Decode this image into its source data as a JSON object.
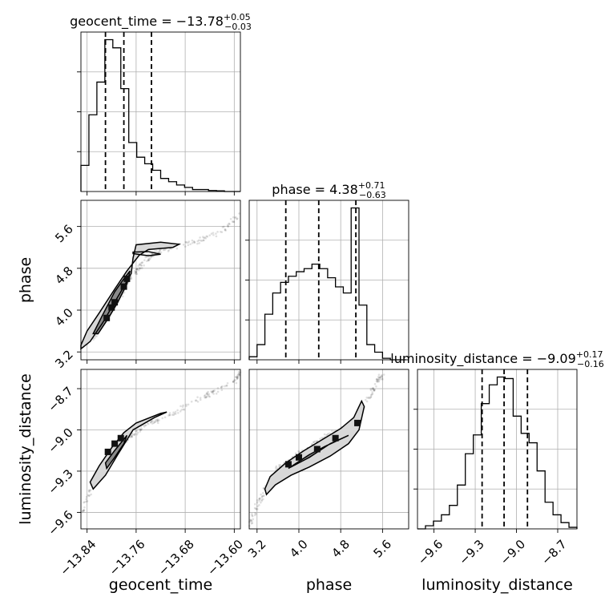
{
  "chart_data": {
    "type": "corner",
    "parameters": [
      {
        "name": "geocent_time",
        "label": "geocent_time",
        "title_prefix": "geocent_time = ",
        "median": "−13.78",
        "plus": "+0.05",
        "minus": "−0.03",
        "range": [
          -13.85,
          -13.59
        ],
        "ticks": [
          -13.84,
          -13.76,
          -13.68,
          -13.6
        ],
        "tick_labels": [
          "−13.84",
          "−13.76",
          "−13.68",
          "−13.60"
        ],
        "quantiles": [
          -13.81,
          -13.78,
          -13.735
        ],
        "hist": {
          "edges": [
            -13.85,
            -13.837,
            -13.824,
            -13.811,
            -13.798,
            -13.785,
            -13.772,
            -13.759,
            -13.746,
            -13.733,
            -13.72,
            -13.707,
            -13.694,
            -13.681,
            -13.668,
            -13.655,
            -13.642,
            -13.629,
            -13.616,
            -13.603,
            -13.59
          ],
          "counts": [
            0.16,
            0.47,
            0.67,
            0.93,
            0.88,
            0.63,
            0.3,
            0.21,
            0.17,
            0.13,
            0.08,
            0.06,
            0.04,
            0.025,
            0.012,
            0.012,
            0.006,
            0.004,
            0.0,
            0.0
          ]
        }
      },
      {
        "name": "phase",
        "label": "phase",
        "title_prefix": "phase = ",
        "median": "4.38",
        "plus": "+0.71",
        "minus": "−0.63",
        "range": [
          3.05,
          6.1
        ],
        "ticks": [
          3.2,
          4.0,
          4.8,
          5.6
        ],
        "tick_labels": [
          "3.2",
          "4.0",
          "4.8",
          "5.6"
        ],
        "quantiles": [
          3.75,
          4.38,
          5.09
        ],
        "hist": {
          "edges": [
            3.05,
            3.2,
            3.35,
            3.5,
            3.65,
            3.8,
            3.95,
            4.1,
            4.25,
            4.4,
            4.55,
            4.7,
            4.85,
            5.0,
            5.15,
            5.3,
            5.45,
            5.6,
            5.75,
            5.9,
            6.05
          ],
          "counts": [
            0.02,
            0.1,
            0.3,
            0.44,
            0.51,
            0.55,
            0.58,
            0.6,
            0.63,
            0.6,
            0.54,
            0.48,
            0.44,
            1.0,
            0.36,
            0.1,
            0.05,
            0.01,
            0.0,
            0.0
          ]
        }
      },
      {
        "name": "luminosity_distance",
        "label": "luminosity_distance",
        "title_prefix": "luminosity_distance = ",
        "median": "−9.09",
        "plus": "+0.17",
        "minus": "−0.16",
        "range": [
          -9.72,
          -8.56
        ],
        "ticks": [
          -9.6,
          -9.3,
          -9.0,
          -8.7
        ],
        "tick_labels": [
          "−9.6",
          "−9.3",
          "−9.0",
          "−8.7"
        ],
        "quantiles": [
          -9.25,
          -9.09,
          -8.92
        ],
        "hist": {
          "edges": [
            -9.72,
            -9.662,
            -9.604,
            -9.546,
            -9.488,
            -9.43,
            -9.372,
            -9.314,
            -9.256,
            -9.198,
            -9.14,
            -9.082,
            -9.024,
            -8.966,
            -8.908,
            -8.85,
            -8.792,
            -8.734,
            -8.676,
            -8.618,
            -8.56
          ],
          "counts": [
            0.0,
            0.02,
            0.05,
            0.09,
            0.15,
            0.28,
            0.48,
            0.6,
            0.8,
            0.92,
            0.97,
            0.96,
            0.72,
            0.61,
            0.55,
            0.37,
            0.17,
            0.09,
            0.04,
            0.01
          ]
        }
      }
    ],
    "pairs": [
      {
        "x": "geocent_time",
        "y": "phase",
        "ridge": [
          [
            -13.85,
            3.3
          ],
          [
            -13.83,
            3.5
          ],
          [
            -13.81,
            3.85
          ],
          [
            -13.79,
            4.2
          ],
          [
            -13.775,
            4.5
          ],
          [
            -13.76,
            4.75
          ],
          [
            -13.745,
            4.95
          ],
          [
            -13.73,
            5.1
          ],
          [
            -13.7,
            5.2
          ],
          [
            -13.66,
            5.32
          ],
          [
            -13.62,
            5.5
          ],
          [
            -13.59,
            5.85
          ]
        ],
        "contours": {
          "outer": [
            [
              -13.85,
              3.33
            ],
            [
              -13.84,
              3.6
            ],
            [
              -13.82,
              3.95
            ],
            [
              -13.795,
              4.4
            ],
            [
              -13.775,
              4.75
            ],
            [
              -13.755,
              5.05
            ],
            [
              -13.74,
              5.16
            ],
            [
              -13.7,
              5.2
            ],
            [
              -13.69,
              5.26
            ],
            [
              -13.72,
              5.3
            ],
            [
              -13.76,
              5.25
            ],
            [
              -13.765,
              5.0
            ],
            [
              -13.768,
              4.7
            ],
            [
              -13.785,
              4.35
            ],
            [
              -13.8,
              4.05
            ],
            [
              -13.815,
              3.75
            ],
            [
              -13.835,
              3.4
            ],
            [
              -13.85,
              3.26
            ]
          ],
          "inner": [
            [
              -13.83,
              3.55
            ],
            [
              -13.815,
              3.9
            ],
            [
              -13.795,
              4.35
            ],
            [
              -13.78,
              4.6
            ],
            [
              -13.77,
              4.75
            ],
            [
              -13.775,
              4.5
            ],
            [
              -13.79,
              4.15
            ],
            [
              -13.805,
              3.85
            ],
            [
              -13.822,
              3.55
            ]
          ],
          "top_loop": [
            [
              -13.765,
              5.08
            ],
            [
              -13.74,
              5.04
            ],
            [
              -13.72,
              5.07
            ],
            [
              -13.74,
              5.12
            ],
            [
              -13.765,
              5.11
            ]
          ]
        },
        "dense_points": [
          [
            -13.808,
            3.85
          ],
          [
            -13.8,
            4.05
          ],
          [
            -13.795,
            4.15
          ],
          [
            -13.78,
            4.45
          ],
          [
            -13.775,
            4.6
          ]
        ]
      },
      {
        "x": "geocent_time",
        "y": "luminosity_distance",
        "ridge": [
          [
            -13.85,
            -9.62
          ],
          [
            -13.83,
            -9.4
          ],
          [
            -13.81,
            -9.25
          ],
          [
            -13.79,
            -9.15
          ],
          [
            -13.77,
            -9.05
          ],
          [
            -13.75,
            -8.98
          ],
          [
            -13.72,
            -8.92
          ],
          [
            -13.68,
            -8.83
          ],
          [
            -13.64,
            -8.74
          ],
          [
            -13.6,
            -8.65
          ],
          [
            -13.59,
            -8.58
          ]
        ],
        "contours": {
          "outer": [
            [
              -13.835,
              -9.38
            ],
            [
              -13.82,
              -9.26
            ],
            [
              -13.8,
              -9.13
            ],
            [
              -13.78,
              -9.02
            ],
            [
              -13.76,
              -8.95
            ],
            [
              -13.72,
              -8.88
            ],
            [
              -13.71,
              -8.87
            ],
            [
              -13.73,
              -8.91
            ],
            [
              -13.765,
              -9.0
            ],
            [
              -13.79,
              -9.18
            ],
            [
              -13.81,
              -9.33
            ],
            [
              -13.83,
              -9.43
            ]
          ],
          "inner": [
            [
              -13.81,
              -9.24
            ],
            [
              -13.795,
              -9.15
            ],
            [
              -13.775,
              -9.04
            ],
            [
              -13.78,
              -9.1
            ],
            [
              -13.795,
              -9.2
            ],
            [
              -13.808,
              -9.28
            ]
          ]
        },
        "dense_points": [
          [
            -13.806,
            -9.16
          ],
          [
            -13.795,
            -9.1
          ],
          [
            -13.785,
            -9.06
          ]
        ]
      },
      {
        "x": "phase",
        "y": "luminosity_distance",
        "ridge": [
          [
            3.05,
            -9.7
          ],
          [
            3.2,
            -9.55
          ],
          [
            3.4,
            -9.4
          ],
          [
            3.6,
            -9.28
          ],
          [
            3.9,
            -9.2
          ],
          [
            4.2,
            -9.13
          ],
          [
            4.5,
            -9.05
          ],
          [
            4.8,
            -9.0
          ],
          [
            5.1,
            -8.92
          ],
          [
            5.3,
            -8.78
          ],
          [
            5.5,
            -8.65
          ],
          [
            5.6,
            -8.6
          ]
        ],
        "contours": {
          "outer": [
            [
              3.35,
              -9.43
            ],
            [
              3.45,
              -9.34
            ],
            [
              3.75,
              -9.24
            ],
            [
              4.1,
              -9.15
            ],
            [
              4.45,
              -9.07
            ],
            [
              4.8,
              -8.99
            ],
            [
              5.05,
              -8.91
            ],
            [
              5.2,
              -8.79
            ],
            [
              5.25,
              -8.83
            ],
            [
              5.15,
              -9.0
            ],
            [
              4.95,
              -9.1
            ],
            [
              4.6,
              -9.19
            ],
            [
              4.2,
              -9.27
            ],
            [
              3.85,
              -9.33
            ],
            [
              3.55,
              -9.4
            ],
            [
              3.38,
              -9.47
            ]
          ],
          "inner": [
            [
              3.8,
              -9.28
            ],
            [
              4.2,
              -9.18
            ],
            [
              4.5,
              -9.12
            ],
            [
              4.95,
              -9.04
            ],
            [
              4.6,
              -9.1
            ],
            [
              4.2,
              -9.2
            ]
          ]
        },
        "dense_points": [
          [
            3.8,
            -9.25
          ],
          [
            4.0,
            -9.2
          ],
          [
            4.35,
            -9.14
          ],
          [
            4.7,
            -9.06
          ],
          [
            5.12,
            -8.95
          ]
        ]
      }
    ],
    "labels": [
      "geocent_time",
      "phase",
      "luminosity_distance"
    ]
  }
}
